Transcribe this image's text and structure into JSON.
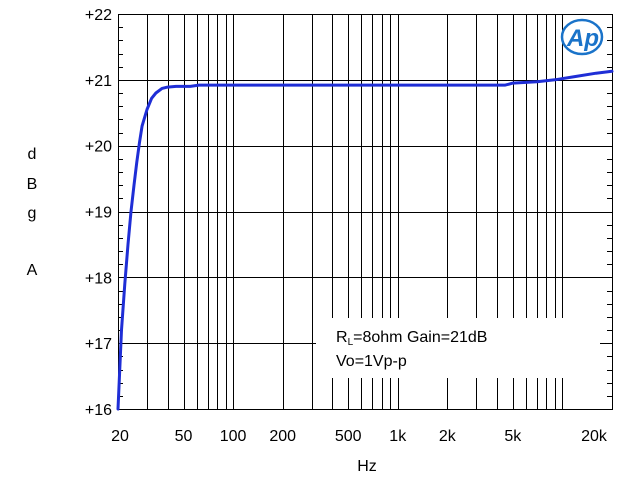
{
  "chart_data": {
    "type": "line",
    "xlabel": "Hz",
    "ylabel_chars": [
      "d",
      "B",
      "g",
      "",
      "A"
    ],
    "x_scale": "log",
    "xlim": [
      20,
      20000
    ],
    "ylim": [
      16,
      22
    ],
    "grid": true,
    "x_tick_labels": [
      {
        "value": 20,
        "label": "20"
      },
      {
        "value": 50,
        "label": "50"
      },
      {
        "value": 100,
        "label": "100"
      },
      {
        "value": 200,
        "label": "200"
      },
      {
        "value": 500,
        "label": "500"
      },
      {
        "value": 1000,
        "label": "1k"
      },
      {
        "value": 2000,
        "label": "2k"
      },
      {
        "value": 5000,
        "label": "5k"
      },
      {
        "value": 20000,
        "label": "20k"
      }
    ],
    "y_tick_labels": [
      {
        "value": 16,
        "label": "+16"
      },
      {
        "value": 17,
        "label": "+17"
      },
      {
        "value": 18,
        "label": "+18"
      },
      {
        "value": 19,
        "label": "+19"
      },
      {
        "value": 20,
        "label": "+20"
      },
      {
        "value": 21,
        "label": "+21"
      },
      {
        "value": 22,
        "label": "+22"
      }
    ],
    "series": [
      {
        "color": "#1f2ed6",
        "points": [
          [
            20,
            16.0
          ],
          [
            21,
            17.2
          ],
          [
            22,
            17.9
          ],
          [
            23,
            18.5
          ],
          [
            24,
            19.0
          ],
          [
            25,
            19.4
          ],
          [
            26,
            19.75
          ],
          [
            27,
            20.05
          ],
          [
            28,
            20.3
          ],
          [
            30,
            20.55
          ],
          [
            32,
            20.72
          ],
          [
            34,
            20.8
          ],
          [
            37,
            20.87
          ],
          [
            40,
            20.89
          ],
          [
            45,
            20.9
          ],
          [
            55,
            20.9
          ],
          [
            62,
            20.92
          ],
          [
            100,
            20.92
          ],
          [
            1000,
            20.92
          ],
          [
            4500,
            20.92
          ],
          [
            5000,
            20.95
          ],
          [
            7000,
            20.97
          ],
          [
            9000,
            21.0
          ],
          [
            12000,
            21.05
          ],
          [
            16000,
            21.1
          ],
          [
            20000,
            21.13
          ]
        ]
      }
    ],
    "annotation": {
      "line1_prefix": "R",
      "line1_sub": "L",
      "line1_rest": "=8ohm Gain=21dB",
      "line2": "Vo=1Vp-p"
    },
    "logo_text": "Ap",
    "colors": {
      "grid": "#000000",
      "curve": "#1f2ed6",
      "logo": "#1a73c9"
    }
  }
}
